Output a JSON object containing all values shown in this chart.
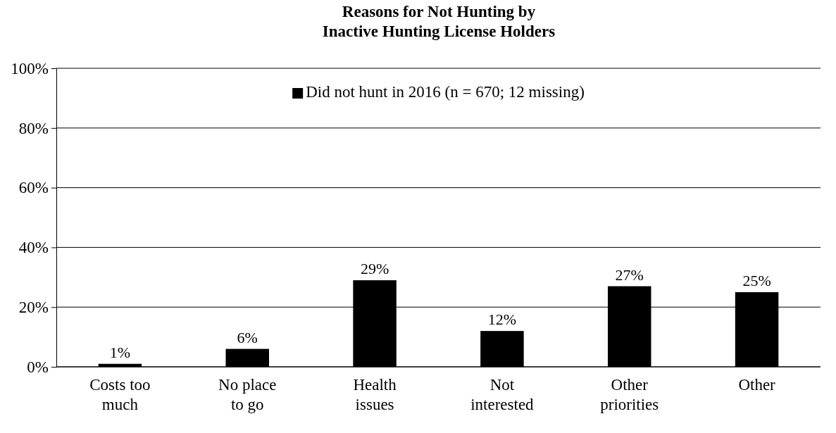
{
  "chart_data": {
    "type": "bar",
    "title": "Reasons for Not Hunting by\nInactive Hunting License Holders",
    "categories": [
      "Costs too much",
      "No place to go",
      "Health issues",
      "Not interested",
      "Other priorities",
      "Other"
    ],
    "series": [
      {
        "name": "Did not hunt in 2016 (n = 670; 12 missing)",
        "color": "#000000",
        "values": [
          1,
          6,
          29,
          12,
          27,
          25
        ],
        "value_labels": [
          "1%",
          "6%",
          "29%",
          "12%",
          "27%",
          "25%"
        ]
      }
    ],
    "ylim": [
      0,
      100
    ],
    "yticks": [
      {
        "value": 0,
        "label": "0%"
      },
      {
        "value": 20,
        "label": "20%"
      },
      {
        "value": 40,
        "label": "40%"
      },
      {
        "value": 60,
        "label": "60%"
      },
      {
        "value": 80,
        "label": "80%"
      },
      {
        "value": 100,
        "label": "100%"
      }
    ],
    "grid": "y",
    "legend": "top"
  }
}
